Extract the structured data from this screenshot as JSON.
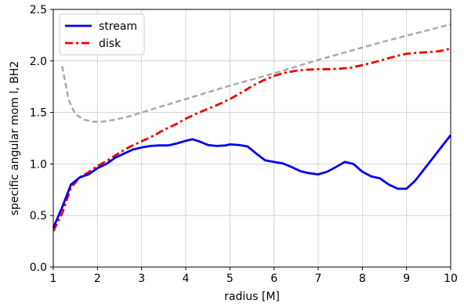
{
  "chart_data": {
    "type": "line",
    "title": "",
    "xlabel": "radius [M]",
    "ylabel": "specific angular mom l, BH2",
    "xlim": [
      1,
      10
    ],
    "ylim": [
      0,
      2.5
    ],
    "x_ticks": [
      1,
      2,
      3,
      4,
      5,
      6,
      7,
      8,
      9,
      10
    ],
    "x_tick_labels": [
      "1",
      "2",
      "3",
      "4",
      "5",
      "6",
      "7",
      "8",
      "9",
      "10"
    ],
    "y_ticks": [
      0,
      0.5,
      1,
      1.5,
      2,
      2.5
    ],
    "y_tick_labels": [
      "0.0",
      "0.5",
      "1.0",
      "1.5",
      "2.0",
      "2.5"
    ],
    "grid": true,
    "legend_position": "top-left",
    "series": [
      {
        "name": "stream",
        "color": "#0000ee",
        "style": "solid",
        "in_legend": true,
        "x": [
          1.0,
          1.2,
          1.4,
          1.6,
          1.8,
          2.0,
          2.2,
          2.4,
          2.6,
          2.8,
          3.0,
          3.2,
          3.4,
          3.6,
          3.8,
          4.0,
          4.15,
          4.3,
          4.5,
          4.7,
          4.9,
          5.0,
          5.2,
          5.4,
          5.6,
          5.8,
          6.0,
          6.2,
          6.4,
          6.6,
          6.8,
          7.0,
          7.2,
          7.4,
          7.6,
          7.8,
          8.0,
          8.2,
          8.4,
          8.6,
          8.8,
          9.0,
          9.2,
          9.4,
          9.6,
          9.8,
          10.0
        ],
        "y": [
          0.38,
          0.58,
          0.8,
          0.87,
          0.9,
          0.96,
          1.0,
          1.06,
          1.1,
          1.14,
          1.16,
          1.175,
          1.18,
          1.18,
          1.2,
          1.225,
          1.24,
          1.22,
          1.185,
          1.175,
          1.18,
          1.19,
          1.185,
          1.17,
          1.1,
          1.035,
          1.02,
          1.005,
          0.97,
          0.93,
          0.91,
          0.9,
          0.925,
          0.97,
          1.02,
          1.0,
          0.925,
          0.88,
          0.86,
          0.8,
          0.76,
          0.76,
          0.84,
          0.95,
          1.06,
          1.17,
          1.28
        ]
      },
      {
        "name": "disk",
        "color": "#ee0000",
        "style": "dash-dot",
        "in_legend": true,
        "x": [
          1.0,
          1.2,
          1.4,
          1.6,
          1.8,
          2.0,
          2.25,
          2.5,
          2.75,
          3.0,
          3.25,
          3.5,
          3.75,
          4.0,
          4.25,
          4.5,
          4.75,
          5.0,
          5.25,
          5.5,
          5.75,
          6.0,
          6.25,
          6.5,
          6.75,
          7.0,
          7.25,
          7.5,
          7.75,
          8.0,
          8.25,
          8.5,
          8.75,
          9.0,
          9.25,
          9.5,
          9.75,
          10.0
        ],
        "y": [
          0.35,
          0.52,
          0.77,
          0.87,
          0.92,
          0.98,
          1.04,
          1.11,
          1.17,
          1.22,
          1.27,
          1.33,
          1.38,
          1.44,
          1.49,
          1.535,
          1.58,
          1.63,
          1.69,
          1.755,
          1.81,
          1.855,
          1.885,
          1.905,
          1.915,
          1.92,
          1.92,
          1.925,
          1.935,
          1.96,
          1.985,
          2.015,
          2.045,
          2.07,
          2.08,
          2.085,
          2.095,
          2.12
        ]
      },
      {
        "name": "",
        "color": "#aaaaaa",
        "style": "dashed",
        "in_legend": false,
        "x": [
          1.2,
          1.35,
          1.5,
          1.7,
          1.9,
          2.1,
          2.4,
          2.7,
          3.0,
          3.5,
          4.0,
          4.5,
          5.0,
          5.5,
          6.0,
          6.5,
          7.0,
          7.5,
          8.0,
          8.5,
          9.0,
          9.5,
          10.0
        ],
        "y": [
          1.95,
          1.62,
          1.48,
          1.43,
          1.41,
          1.41,
          1.43,
          1.46,
          1.5,
          1.565,
          1.63,
          1.695,
          1.76,
          1.82,
          1.88,
          1.945,
          2.01,
          2.07,
          2.13,
          2.19,
          2.245,
          2.3,
          2.355
        ]
      }
    ]
  }
}
